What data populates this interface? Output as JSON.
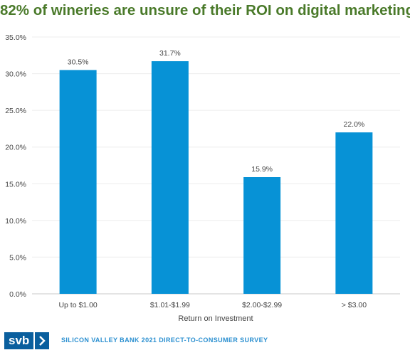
{
  "title": "82% of wineries are unsure of their ROI on digital marketing",
  "footer": {
    "logo_text": "svb",
    "survey_label": "SILICON VALLEY BANK 2021 DIRECT-TO-CONSUMER SURVEY"
  },
  "colors": {
    "title": "#4a7a2a",
    "bar": "#0792d6",
    "logo": "#0a5f9e",
    "survey_text": "#2a8fd0"
  },
  "chart_data": {
    "type": "bar",
    "categories": [
      "Up to $1.00",
      "$1.01-$1.99",
      "$2.00-$2.99",
      "> $3.00"
    ],
    "values": [
      30.5,
      31.7,
      15.9,
      22.0
    ],
    "data_labels": [
      "30.5%",
      "31.7%",
      "15.9%",
      "22.0%"
    ],
    "title": "82% of wineries are unsure of their ROI on digital marketing",
    "xlabel": "Return on Investment",
    "ylabel": "",
    "ylim": [
      0,
      35
    ],
    "yticks": [
      0,
      5,
      10,
      15,
      20,
      25,
      30,
      35
    ],
    "ytick_labels": [
      "0.0%",
      "5.0%",
      "10.0%",
      "15.0%",
      "20.0%",
      "25.0%",
      "30.0%",
      "35.0%"
    ],
    "grid": true,
    "legend": "none"
  }
}
